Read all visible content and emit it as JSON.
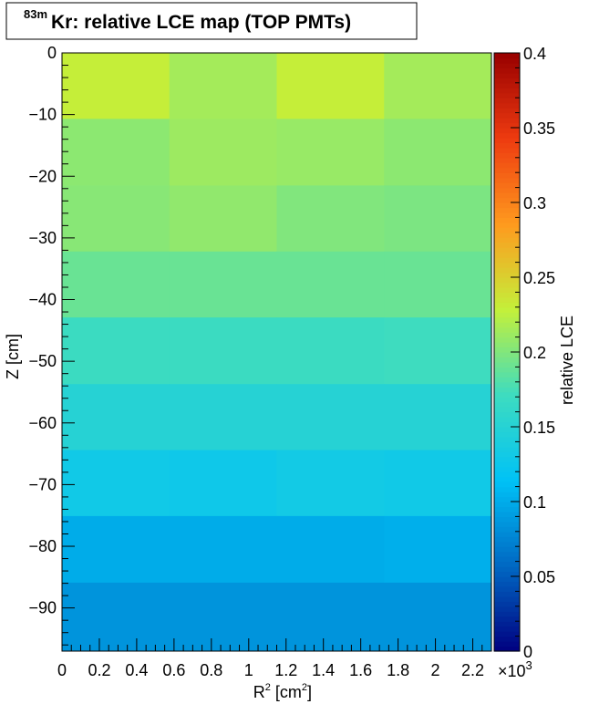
{
  "chart_data": {
    "type": "heatmap",
    "title": {
      "superscript": "83m",
      "text": "Kr: relative LCE map (TOP PMTs)"
    },
    "xlabel": {
      "main": "R",
      "sup": "2",
      "unit_prefix": " [cm",
      "unit_sup": "2",
      "unit_suffix": "]"
    },
    "ylabel": "Z [cm]",
    "zlabel": "relative LCE",
    "x_multiplier_label": "×10",
    "x_multiplier_exp": "3",
    "xlim": [
      0,
      2.3
    ],
    "ylim": [
      -97,
      0
    ],
    "zlim": [
      0,
      0.4
    ],
    "x_ticks": [
      "0",
      "0.2",
      "0.4",
      "0.6",
      "0.8",
      "1",
      "1.2",
      "1.4",
      "1.6",
      "1.8",
      "2",
      "2.2"
    ],
    "y_ticks": [
      "0",
      "−10",
      "−20",
      "−30",
      "−40",
      "−50",
      "−60",
      "−70",
      "−80",
      "−90"
    ],
    "z_ticks": [
      "0",
      "0.05",
      "0.1",
      "0.15",
      "0.2",
      "0.25",
      "0.3",
      "0.35",
      "0.4"
    ],
    "x_bin_edges": [
      0,
      0.575,
      1.15,
      1.725,
      2.3
    ],
    "y_bin_edges": [
      0,
      -10.7,
      -21.5,
      -32.2,
      -42.9,
      -53.7,
      -64.4,
      -75.1,
      -85.9,
      -97
    ],
    "values": [
      [
        0.23,
        0.215,
        0.23,
        0.215
      ],
      [
        0.205,
        0.212,
        0.21,
        0.205
      ],
      [
        0.203,
        0.207,
        0.2,
        0.198
      ],
      [
        0.19,
        0.19,
        0.19,
        0.19
      ],
      [
        0.17,
        0.17,
        0.17,
        0.172
      ],
      [
        0.15,
        0.15,
        0.15,
        0.15
      ],
      [
        0.13,
        0.128,
        0.132,
        0.13
      ],
      [
        0.1,
        0.1,
        0.1,
        0.102
      ],
      [
        0.085,
        0.085,
        0.085,
        0.085
      ]
    ],
    "palette": [
      "#000080",
      "#0068c3",
      "#00c2f6",
      "#3ddcc0",
      "#c4f03a",
      "#ff9a1e",
      "#ee3b10",
      "#990000"
    ],
    "grid": false,
    "colorbar": "right"
  }
}
